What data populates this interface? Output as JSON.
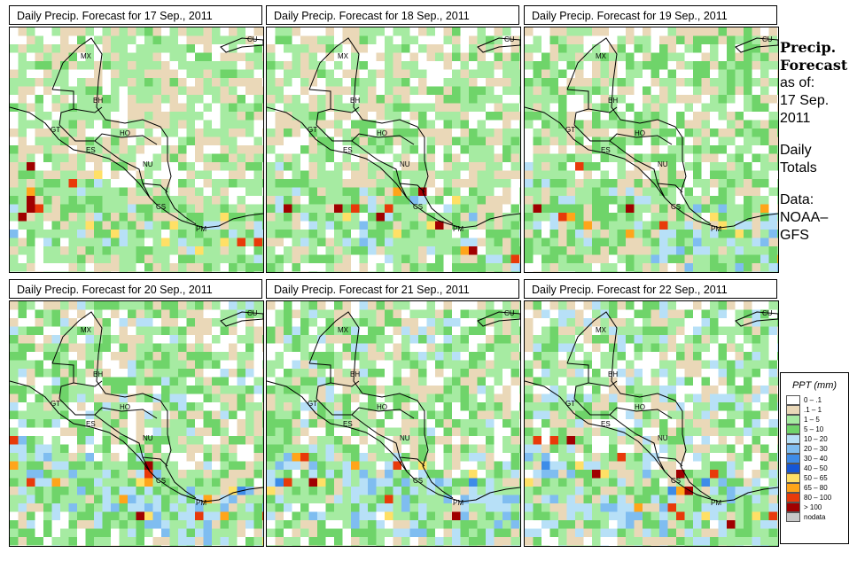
{
  "panels": [
    {
      "title": "Daily Precip. Forecast for  17 Sep., 2011",
      "seed": 11,
      "wet": 0.55
    },
    {
      "title": "Daily Precip. Forecast for  18 Sep., 2011",
      "seed": 23,
      "wet": 0.52
    },
    {
      "title": "Daily Precip. Forecast for  19 Sep., 2011",
      "seed": 37,
      "wet": 0.45
    },
    {
      "title": "Daily Precip. Forecast for  20 Sep., 2011",
      "seed": 41,
      "wet": 0.42
    },
    {
      "title": "Daily Precip. Forecast for  21 Sep., 2011",
      "seed": 53,
      "wet": 0.4
    },
    {
      "title": "Daily Precip. Forecast for  22 Sep., 2011",
      "seed": 67,
      "wet": 0.38
    }
  ],
  "country_labels": [
    "MX",
    "BH",
    "GT",
    "HO",
    "ES",
    "NU",
    "CS",
    "PM",
    "CU"
  ],
  "side": {
    "title1": "Precip.",
    "title2": "Forecast",
    "asof": "as of:",
    "date": "17 Sep.",
    "year": "2011",
    "daily": "Daily",
    "totals": "Totals",
    "data_label": "Data:",
    "source1": "NOAA–",
    "source2": "GFS"
  },
  "legend": {
    "title": "PPT (mm)",
    "items": [
      {
        "label": "0 – .1",
        "color": "#ffffff"
      },
      {
        "label": ".1 – 1",
        "color": "#ead8b8"
      },
      {
        "label": "1 – 5",
        "color": "#a6eba2"
      },
      {
        "label": "5 – 10",
        "color": "#6fd46a"
      },
      {
        "label": "10 – 20",
        "color": "#b7e0f7"
      },
      {
        "label": "20 – 30",
        "color": "#7fbdf0"
      },
      {
        "label": "30 – 40",
        "color": "#3e8ce8"
      },
      {
        "label": "40 – 50",
        "color": "#1556d6"
      },
      {
        "label": "50 – 65",
        "color": "#ffe066"
      },
      {
        "label": "65 – 80",
        "color": "#ffa51a"
      },
      {
        "label": "80 – 100",
        "color": "#e83a0a"
      },
      {
        "label": "> 100",
        "color": "#a00000"
      },
      {
        "label": "nodata",
        "color": "#c8c8c8"
      }
    ]
  }
}
